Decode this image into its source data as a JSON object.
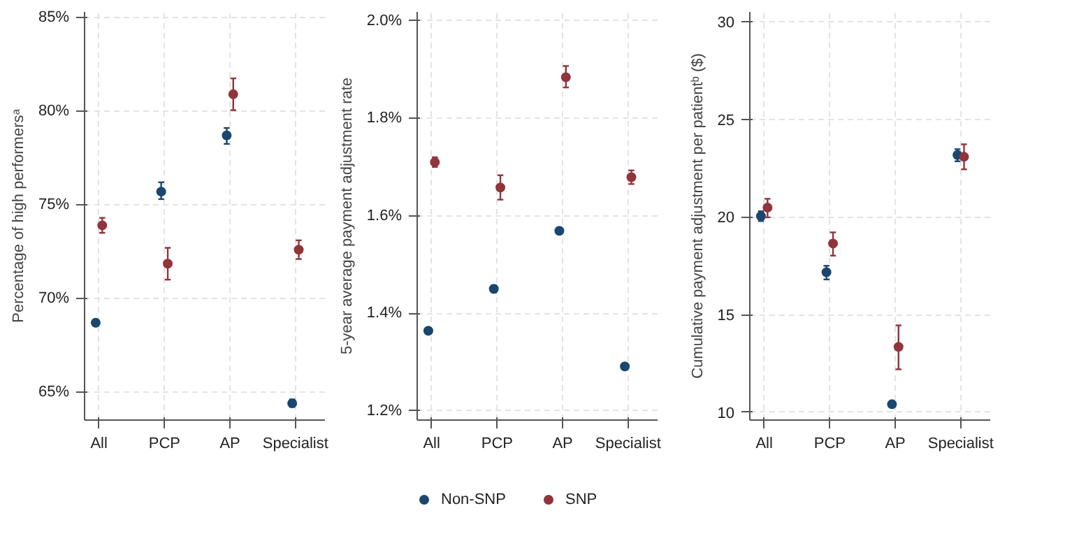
{
  "chart_data": [
    {
      "type": "scatter",
      "ylabel": "Percentage of high performersᵃ",
      "categories": [
        "All",
        "PCP",
        "AP",
        "Specialist"
      ],
      "ylim": [
        63.5,
        85.3
      ],
      "yticks": [
        {
          "value": 65,
          "label": "65%"
        },
        {
          "value": 70,
          "label": "70%"
        },
        {
          "value": 75,
          "label": "75%"
        },
        {
          "value": 80,
          "label": "80%"
        },
        {
          "value": 85,
          "label": "85%"
        }
      ],
      "grid": true,
      "marker": "circle",
      "series": [
        {
          "color": "#1a476f",
          "values": [
            68.7,
            75.7,
            78.7,
            64.4
          ],
          "errors": [
            0.15,
            [
              75.3,
              76.2
            ],
            [
              78.25,
              79.1
            ],
            0.2
          ]
        },
        {
          "color": "#90353b",
          "values": [
            73.9,
            71.85,
            80.9,
            72.6
          ],
          "errors": [
            [
              73.5,
              74.3
            ],
            [
              71.0,
              72.7
            ],
            [
              80.05,
              81.75
            ],
            [
              72.1,
              73.1
            ]
          ]
        }
      ]
    },
    {
      "type": "scatter",
      "ylabel": "5-year average payment adjustment rate",
      "categories": [
        "All",
        "PCP",
        "AP",
        "Specialist"
      ],
      "ylim": [
        1.181,
        2.018
      ],
      "yticks": [
        {
          "value": 1.2,
          "label": "1.2%"
        },
        {
          "value": 1.4,
          "label": "1.4%"
        },
        {
          "value": 1.6,
          "label": "1.6%"
        },
        {
          "value": 1.8,
          "label": "1.8%"
        },
        {
          "value": 2.0,
          "label": "2.0%"
        }
      ],
      "grid": true,
      "legend": "bottom",
      "marker": "circle",
      "series": [
        {
          "name": "Non-SNP",
          "color": "#1a476f",
          "values": [
            1.364,
            1.45,
            1.569,
            1.291
          ],
          "errors": [
            0.003,
            0.007,
            0.006,
            0.003
          ]
        },
        {
          "name": "SNP",
          "color": "#90353b",
          "values": [
            1.71,
            1.658,
            1.884,
            1.679
          ],
          "errors": [
            [
              1.7,
              1.72
            ],
            [
              1.633,
              1.683
            ],
            [
              1.863,
              1.907
            ],
            [
              1.665,
              1.693
            ]
          ]
        }
      ]
    },
    {
      "type": "scatter",
      "ylabel": "Cumulative payment adjustment per patientᵇ ($)",
      "categories": [
        "All",
        "PCP",
        "AP",
        "Specialist"
      ],
      "ylim": [
        9.6,
        30.5
      ],
      "yticks": [
        10,
        15,
        20,
        25,
        30
      ],
      "grid": true,
      "marker": "circle",
      "series": [
        {
          "color": "#1a476f",
          "values": [
            20.04,
            17.17,
            10.41,
            23.17
          ],
          "errors": [
            0.25,
            [
              16.8,
              17.5
            ],
            0.15,
            [
              22.85,
              23.47
            ]
          ]
        },
        {
          "color": "#90353b",
          "values": [
            20.48,
            18.64,
            13.35,
            23.08
          ],
          "errors": [
            [
              19.98,
              20.93
            ],
            [
              18.02,
              19.21
            ],
            [
              12.2,
              14.45
            ],
            [
              22.44,
              23.72
            ]
          ]
        }
      ]
    }
  ]
}
